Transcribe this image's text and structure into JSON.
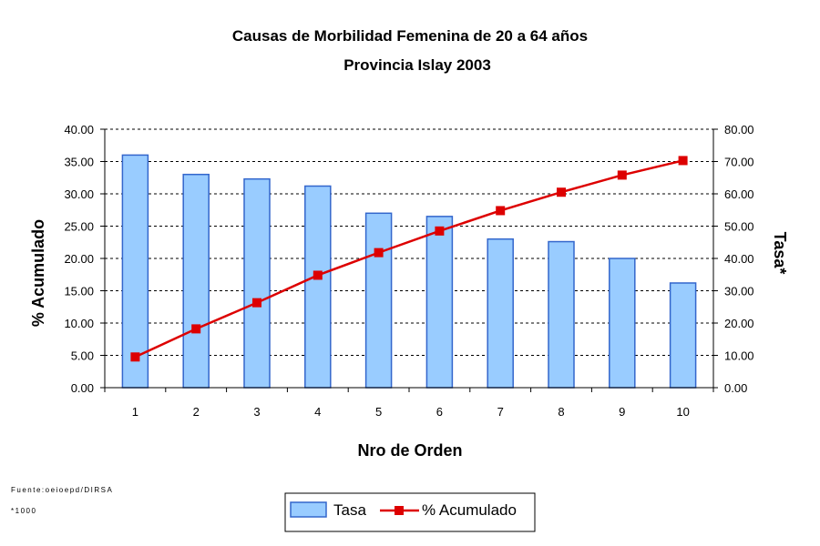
{
  "chart_data": {
    "type": "bar",
    "title": "Causas de Morbilidad Femenina de 20 a 64 años",
    "subtitle": "Provincia Islay 2003",
    "xlabel": "Nro de Orden",
    "ylabel_left": "% Acumulado",
    "ylabel_right": "Tasa*",
    "categories": [
      "1",
      "2",
      "3",
      "4",
      "5",
      "6",
      "7",
      "8",
      "9",
      "10"
    ],
    "left_axis": {
      "min": 0,
      "max": 40,
      "step": 5,
      "ticks": [
        "0.00",
        "5.00",
        "10.00",
        "15.00",
        "20.00",
        "25.00",
        "30.00",
        "35.00",
        "40.00"
      ]
    },
    "right_axis": {
      "min": 0,
      "max": 80,
      "step": 10,
      "ticks": [
        "0.00",
        "10.00",
        "20.00",
        "30.00",
        "40.00",
        "50.00",
        "60.00",
        "70.00",
        "80.00"
      ]
    },
    "grid": "horizontal dashed",
    "legend_position": "bottom",
    "series": [
      {
        "name": "Tasa",
        "type": "bar",
        "axis": "left",
        "color": "#99ccff",
        "border": "#3366cc",
        "values": [
          36.0,
          33.0,
          32.3,
          31.2,
          27.0,
          26.5,
          23.0,
          22.6,
          20.0,
          16.2
        ]
      },
      {
        "name": "% Acumulado",
        "type": "line",
        "axis": "right",
        "color": "#dd0000",
        "values": [
          9.5,
          18.2,
          26.3,
          34.8,
          41.8,
          48.5,
          54.8,
          60.5,
          65.8,
          70.3
        ]
      }
    ]
  },
  "notes": {
    "source": "Fuente:oeioepd/DIRSA",
    "footnote": "*1000"
  },
  "legend": {
    "items": [
      "Tasa",
      "% Acumulado"
    ]
  }
}
